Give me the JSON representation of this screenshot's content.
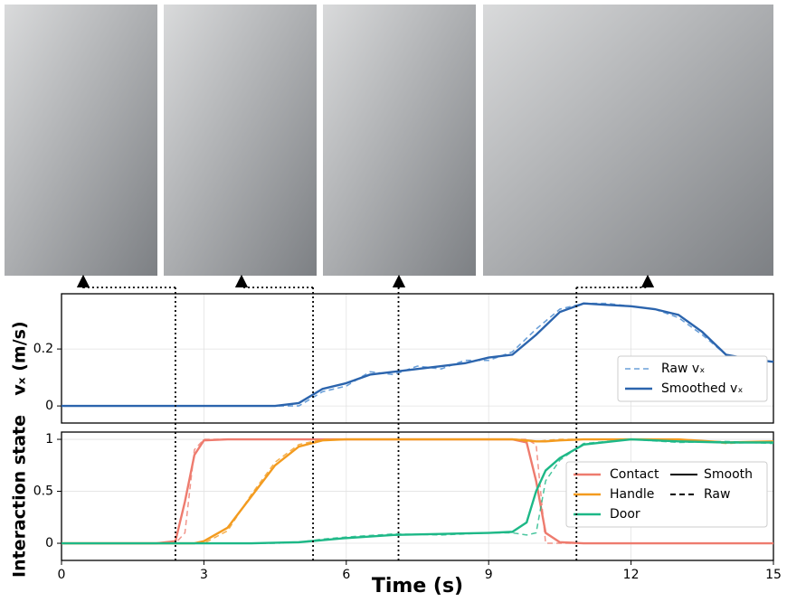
{
  "event_times": [
    2.4,
    5.3,
    7.1,
    10.85
  ],
  "chart_data": [
    {
      "type": "line",
      "y_label": "vₓ (m/s)",
      "xlim": [
        0,
        15
      ],
      "ylim": [
        -0.06,
        0.394
      ],
      "yticks": [
        0,
        0.2
      ],
      "grid": true,
      "legend": "lower right",
      "x": [
        0,
        0.5,
        1,
        1.5,
        2,
        2.5,
        3,
        3.5,
        4,
        4.5,
        5,
        5.5,
        6,
        6.5,
        7,
        7.5,
        8,
        8.5,
        9,
        9.5,
        10,
        10.5,
        11,
        11.5,
        12,
        12.5,
        13,
        13.5,
        14,
        14.5,
        15
      ],
      "series": [
        {
          "name": "Raw vₓ",
          "color": "#6a9fd8",
          "dashed": true,
          "values": [
            0,
            0,
            0,
            0,
            0,
            0,
            0,
            0,
            0,
            0,
            0,
            0.05,
            0.07,
            0.12,
            0.11,
            0.14,
            0.13,
            0.16,
            0.16,
            0.19,
            0.27,
            0.34,
            0.36,
            0.36,
            0.35,
            0.34,
            0.31,
            0.25,
            0.18,
            0.165,
            0.155
          ]
        },
        {
          "name": "Smoothed vₓ",
          "color": "#2b64ad",
          "dashed": false,
          "values": [
            0,
            0,
            0,
            0,
            0,
            0,
            0,
            0,
            0,
            0,
            0.01,
            0.06,
            0.08,
            0.11,
            0.12,
            0.13,
            0.14,
            0.15,
            0.17,
            0.18,
            0.25,
            0.33,
            0.36,
            0.355,
            0.35,
            0.34,
            0.32,
            0.26,
            0.18,
            0.165,
            0.155
          ]
        }
      ]
    },
    {
      "type": "line",
      "y_label": "Interaction state",
      "x_label": "Time (s)",
      "xlim": [
        0,
        15
      ],
      "xticks": [
        0,
        3,
        6,
        9,
        12,
        15
      ],
      "ylim": [
        -0.165,
        1.07
      ],
      "yticks": [
        0,
        0.5,
        1
      ],
      "grid": true,
      "legend": "center right",
      "line_styles": [
        "Smooth",
        "Raw"
      ],
      "x": [
        0,
        2,
        2.4,
        2.6,
        2.8,
        3,
        3.5,
        4,
        4.5,
        5,
        5.5,
        6,
        7,
        8,
        9,
        9.5,
        9.8,
        10,
        10.2,
        10.5,
        11,
        12,
        13,
        14,
        15
      ],
      "series": [
        {
          "name": "Contact",
          "color": "#ee7b6e",
          "values": [
            0,
            0,
            0.02,
            0.4,
            0.85,
            0.99,
            1,
            1,
            1,
            1,
            1,
            1,
            1,
            1,
            1,
            1,
            0.97,
            0.6,
            0.1,
            0.01,
            0,
            0,
            0,
            0,
            0
          ],
          "raw_values": [
            0,
            0,
            0,
            0.1,
            0.9,
            1,
            1,
            1,
            1,
            1,
            1,
            1,
            1,
            1,
            1,
            1,
            1,
            0.95,
            0,
            0,
            0,
            0,
            0,
            0,
            0
          ]
        },
        {
          "name": "Handle",
          "color": "#f39b1f",
          "values": [
            0,
            0,
            0,
            0,
            0,
            0.02,
            0.15,
            0.45,
            0.75,
            0.93,
            0.99,
            1,
            1,
            1,
            1,
            1,
            0.99,
            0.98,
            0.98,
            0.99,
            1,
            1,
            1,
            0.97,
            0.98
          ],
          "raw_values": [
            0,
            0,
            0,
            0,
            0,
            0,
            0.12,
            0.47,
            0.78,
            0.95,
            1,
            1,
            1,
            1,
            1,
            1,
            0.98,
            0.98,
            0.99,
            1,
            1,
            1,
            1,
            0.96,
            0.98
          ]
        },
        {
          "name": "Door",
          "color": "#1db887",
          "values": [
            0,
            0,
            0,
            0,
            0,
            0,
            0,
            0,
            0.005,
            0.01,
            0.03,
            0.05,
            0.08,
            0.09,
            0.1,
            0.11,
            0.2,
            0.5,
            0.7,
            0.82,
            0.95,
            1,
            0.98,
            0.97,
            0.97
          ],
          "raw_values": [
            0,
            0,
            0,
            0,
            0,
            0,
            0,
            0,
            0,
            0.01,
            0.04,
            0.06,
            0.09,
            0.08,
            0.1,
            0.1,
            0.08,
            0.1,
            0.6,
            0.8,
            0.96,
            1,
            0.97,
            0.98,
            0.96
          ]
        }
      ]
    }
  ]
}
